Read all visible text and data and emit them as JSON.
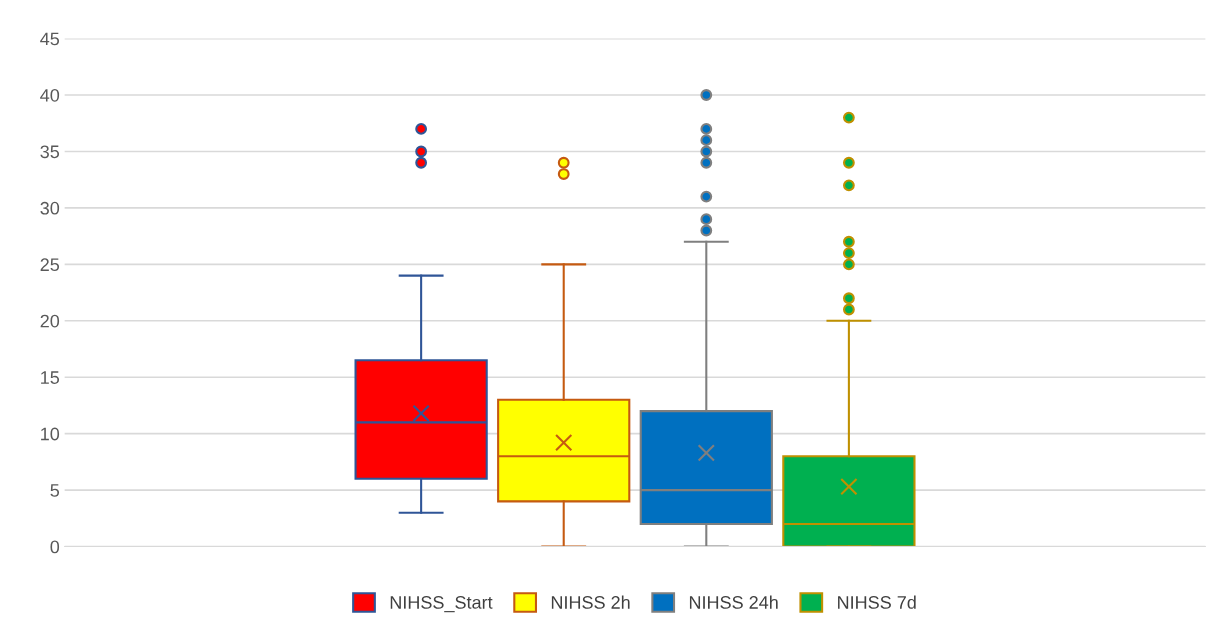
{
  "chart_data": {
    "type": "box",
    "categories": [
      null
    ],
    "ylim": [
      0,
      45
    ],
    "yticks": [
      0,
      5,
      10,
      15,
      20,
      25,
      30,
      35,
      40,
      45
    ],
    "grid": "y",
    "legend": "bottom",
    "series": [
      {
        "name": "NIHSS_Start",
        "color": "#ff0000",
        "boxes": [
          {
            "low": 3,
            "q1": 6,
            "median": 11,
            "q3": 16.5,
            "high": 24,
            "mean": 11.8,
            "outliers": [
              34,
              35,
              37
            ]
          }
        ]
      },
      {
        "name": "NIHSS 2h",
        "color": "#ffff00",
        "boxes": [
          {
            "low": 0,
            "q1": 4,
            "median": 8,
            "q3": 13,
            "high": 25,
            "mean": 9.2,
            "outliers": [
              33,
              34
            ]
          }
        ]
      },
      {
        "name": "NIHSS 24h",
        "color": "#0070c0",
        "boxes": [
          {
            "low": 0,
            "q1": 2,
            "median": 5,
            "q3": 12,
            "high": 27,
            "mean": 8.3,
            "outliers": [
              28,
              29,
              31,
              34,
              35,
              36,
              37,
              40
            ]
          }
        ]
      },
      {
        "name": "NIHSS 7d",
        "color": "#00b050",
        "boxes": [
          {
            "low": 0,
            "q1": 0,
            "median": 2,
            "q3": 8,
            "high": 20,
            "mean": 5.3,
            "outliers": [
              21,
              22,
              25,
              26,
              27,
              32,
              34,
              38
            ]
          }
        ]
      }
    ]
  }
}
